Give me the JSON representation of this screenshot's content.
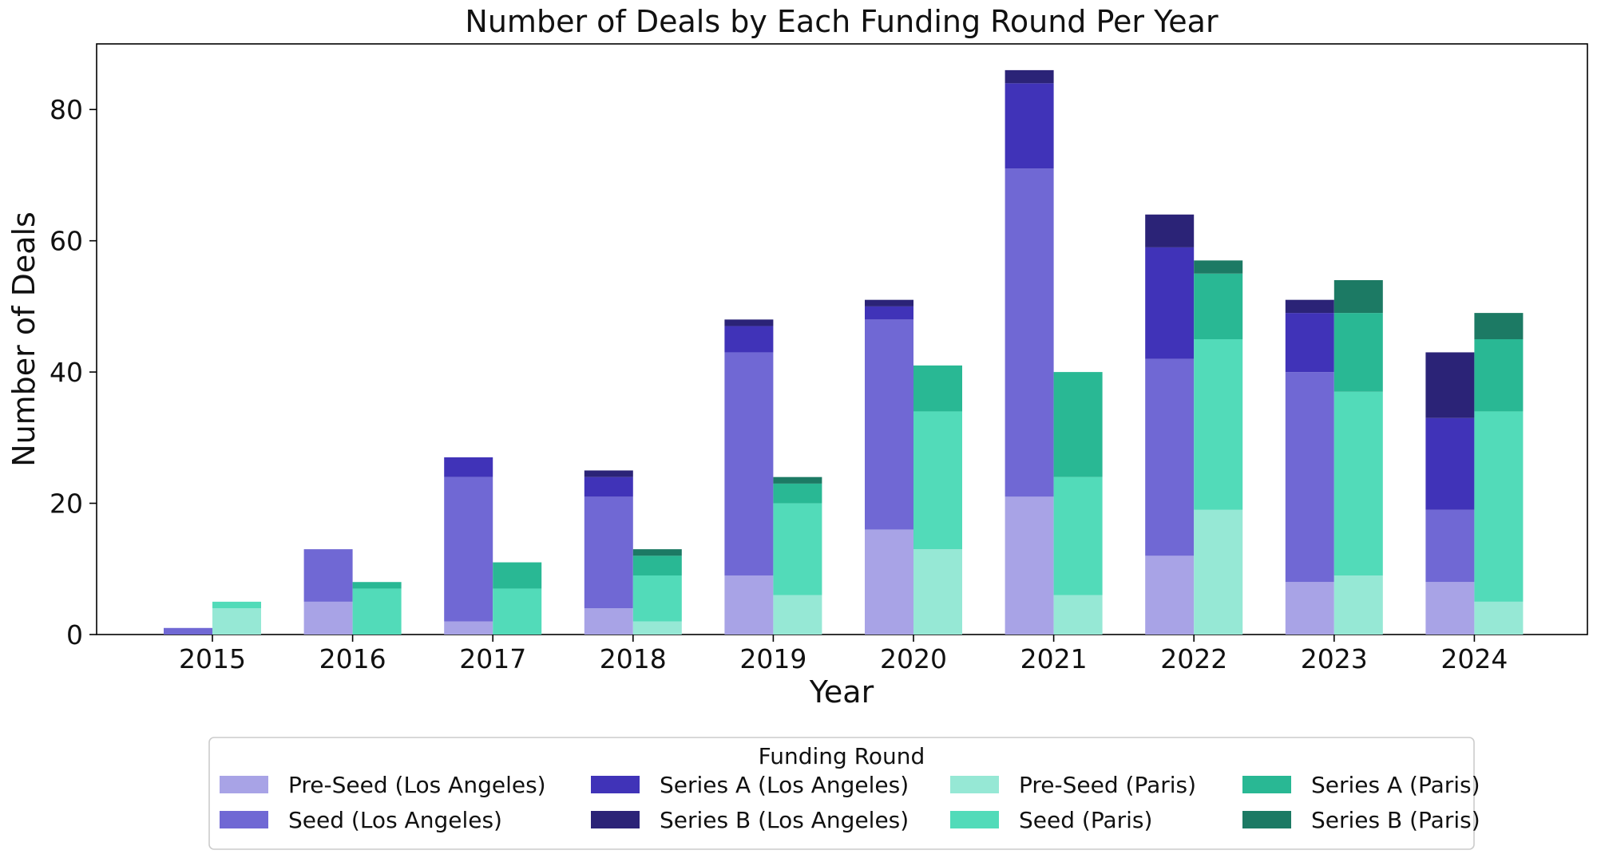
{
  "chart_data": {
    "type": "bar",
    "stacked": true,
    "grouped": true,
    "title": "Number of Deals by Each Funding Round Per Year",
    "xlabel": "Year",
    "ylabel": "Number of Deals",
    "ylim": [
      0,
      90
    ],
    "yticks": [
      0,
      20,
      40,
      60,
      80
    ],
    "grid": false,
    "categories": [
      "2015",
      "2016",
      "2017",
      "2018",
      "2019",
      "2020",
      "2021",
      "2022",
      "2023",
      "2024"
    ],
    "groups": [
      "Los Angeles",
      "Paris"
    ],
    "series": [
      {
        "name": "Pre-Seed (Los Angeles)",
        "group": "Los Angeles",
        "color": "#a8a3e6",
        "values": [
          0,
          5,
          2,
          4,
          9,
          16,
          21,
          12,
          8,
          8
        ]
      },
      {
        "name": "Seed (Los Angeles)",
        "group": "Los Angeles",
        "color": "#7068d4",
        "values": [
          1,
          8,
          22,
          17,
          34,
          32,
          50,
          30,
          32,
          11
        ]
      },
      {
        "name": "Series A (Los Angeles)",
        "group": "Los Angeles",
        "color": "#4033b8",
        "values": [
          0,
          0,
          3,
          3,
          4,
          2,
          13,
          17,
          9,
          14
        ]
      },
      {
        "name": "Series B (Los Angeles)",
        "group": "Los Angeles",
        "color": "#2b2377",
        "values": [
          0,
          0,
          0,
          1,
          1,
          1,
          2,
          5,
          2,
          10
        ]
      },
      {
        "name": "Pre-Seed (Paris)",
        "group": "Paris",
        "color": "#96e8d5",
        "values": [
          4,
          0,
          0,
          2,
          6,
          13,
          6,
          19,
          9,
          5
        ]
      },
      {
        "name": "Seed (Paris)",
        "group": "Paris",
        "color": "#52dbb9",
        "values": [
          1,
          7,
          7,
          7,
          14,
          21,
          18,
          26,
          28,
          29
        ]
      },
      {
        "name": "Series A (Paris)",
        "group": "Paris",
        "color": "#29b894",
        "values": [
          0,
          1,
          4,
          3,
          3,
          7,
          16,
          10,
          12,
          11
        ]
      },
      {
        "name": "Series B (Paris)",
        "group": "Paris",
        "color": "#1c7a64",
        "values": [
          0,
          0,
          0,
          1,
          1,
          0,
          0,
          2,
          5,
          4
        ]
      }
    ],
    "legend": {
      "title": "Funding Round",
      "placement": "bottom-center",
      "columns": 4
    }
  }
}
